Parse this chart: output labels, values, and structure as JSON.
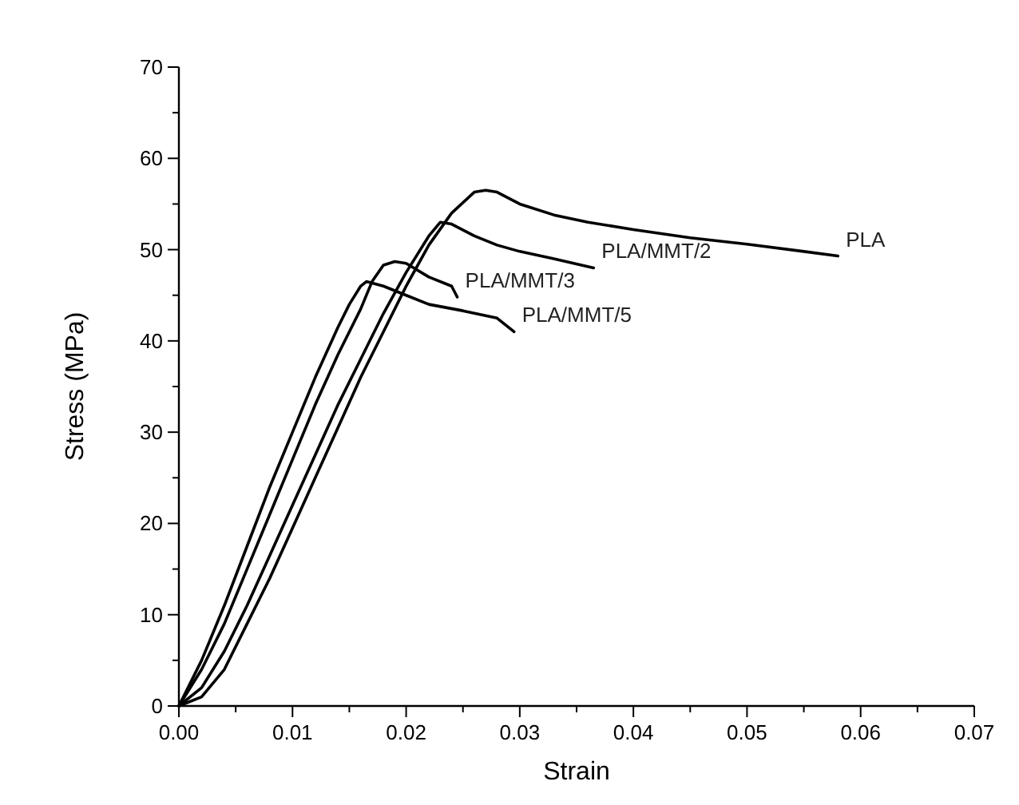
{
  "chart_data": {
    "type": "line",
    "xlabel": "Strain",
    "ylabel": "Stress (MPa)",
    "xlim": [
      0,
      0.07
    ],
    "ylim": [
      0,
      70
    ],
    "xticks": [
      {
        "value": 0,
        "label": "0.00"
      },
      {
        "value": 0.005,
        "label": null
      },
      {
        "value": 0.01,
        "label": "0.01"
      },
      {
        "value": 0.015,
        "label": null
      },
      {
        "value": 0.02,
        "label": "0.02"
      },
      {
        "value": 0.025,
        "label": null
      },
      {
        "value": 0.03,
        "label": "0.03"
      },
      {
        "value": 0.035,
        "label": null
      },
      {
        "value": 0.04,
        "label": "0.04"
      },
      {
        "value": 0.045,
        "label": null
      },
      {
        "value": 0.05,
        "label": "0.05"
      },
      {
        "value": 0.055,
        "label": null
      },
      {
        "value": 0.06,
        "label": "0.06"
      },
      {
        "value": 0.065,
        "label": null
      },
      {
        "value": 0.07,
        "label": "0.07"
      }
    ],
    "yticks": [
      0,
      {
        "value": 5,
        "label": null
      },
      10,
      {
        "value": 15,
        "label": null
      },
      20,
      {
        "value": 25,
        "label": null
      },
      30,
      {
        "value": 35,
        "label": null
      },
      40,
      {
        "value": 45,
        "label": null
      },
      50,
      {
        "value": 55,
        "label": null
      },
      60,
      {
        "value": 65,
        "label": null
      },
      70
    ],
    "grid": false,
    "marker": "none",
    "line_style": "solid",
    "series": [
      {
        "name": "PLA",
        "color": "#000000",
        "x": [
          0,
          0.002,
          0.004,
          0.006,
          0.008,
          0.01,
          0.012,
          0.014,
          0.016,
          0.018,
          0.02,
          0.022,
          0.024,
          0.026,
          0.027,
          0.028,
          0.03,
          0.033,
          0.036,
          0.04,
          0.045,
          0.05,
          0.055,
          0.058
        ],
        "values": [
          0,
          1,
          4,
          9,
          14,
          19.5,
          25,
          30.5,
          36,
          41,
          46,
          50.5,
          54,
          56.3,
          56.5,
          56.3,
          55,
          53.8,
          53,
          52.2,
          51.3,
          50.6,
          49.8,
          49.3
        ]
      },
      {
        "name": "PLA/MMT/2",
        "color": "#000000",
        "x": [
          0,
          0.002,
          0.004,
          0.006,
          0.008,
          0.01,
          0.012,
          0.014,
          0.016,
          0.018,
          0.02,
          0.022,
          0.023,
          0.024,
          0.026,
          0.028,
          0.03,
          0.033,
          0.0365
        ],
        "values": [
          0,
          2,
          6,
          11,
          16.5,
          22,
          27.5,
          33,
          38,
          43,
          47.5,
          51.5,
          53,
          52.8,
          51.5,
          50.5,
          49.8,
          49,
          48
        ]
      },
      {
        "name": "PLA/MMT/3",
        "color": "#000000",
        "x": [
          0,
          0.002,
          0.004,
          0.006,
          0.008,
          0.01,
          0.012,
          0.014,
          0.016,
          0.017,
          0.018,
          0.019,
          0.02,
          0.022,
          0.024,
          0.0245
        ],
        "values": [
          0,
          4,
          9,
          15,
          21,
          27,
          33,
          38.5,
          43.5,
          46.5,
          48.3,
          48.7,
          48.5,
          47,
          46,
          44.8
        ]
      },
      {
        "name": "PLA/MMT/5",
        "color": "#000000",
        "x": [
          0,
          0.002,
          0.004,
          0.006,
          0.008,
          0.01,
          0.012,
          0.014,
          0.015,
          0.016,
          0.0165,
          0.018,
          0.02,
          0.022,
          0.025,
          0.028,
          0.0295
        ],
        "values": [
          0,
          5,
          11,
          17.5,
          24,
          30,
          36,
          41.5,
          44,
          46,
          46.5,
          46,
          45,
          44,
          43.3,
          42.5,
          41
        ]
      }
    ]
  }
}
